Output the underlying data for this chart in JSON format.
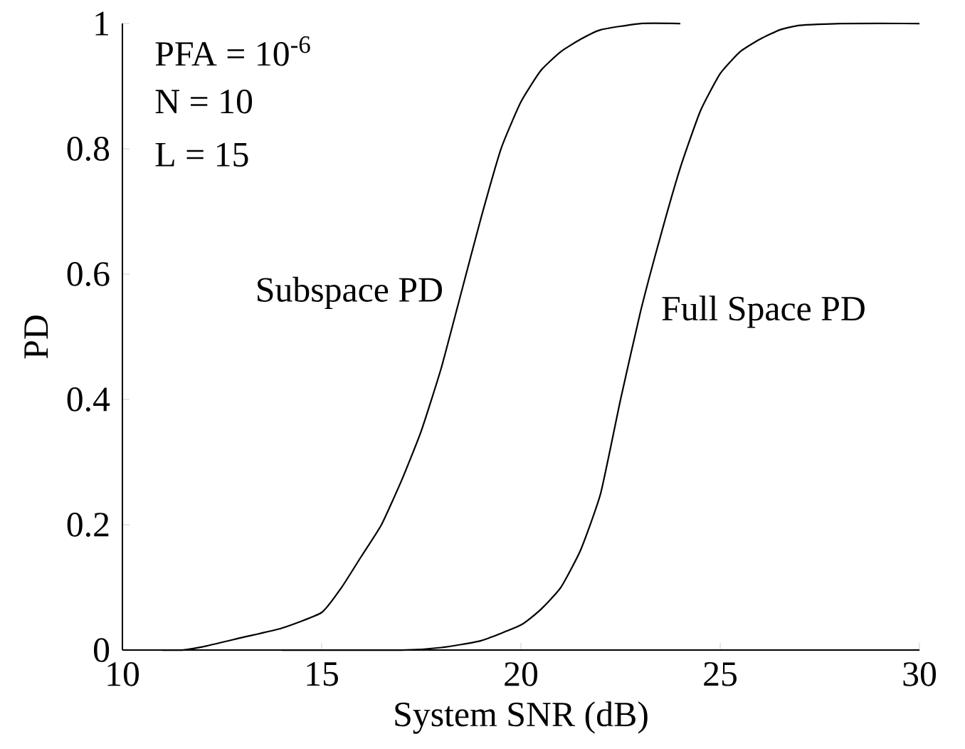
{
  "chart_data": {
    "type": "line",
    "xlabel": "System SNR (dB)",
    "ylabel": "PD",
    "xlim": [
      10,
      30
    ],
    "ylim": [
      0,
      1
    ],
    "xticks": [
      10,
      15,
      20,
      25,
      30
    ],
    "yticks": [
      0,
      0.2,
      0.4,
      0.6,
      0.8,
      1
    ],
    "annotations": [
      "PFA = 10$^{-6}$",
      "N = 10",
      "L = 15"
    ],
    "series": [
      {
        "name": "Subspace PD",
        "color": "#000000",
        "x": [
          11,
          11.5,
          12,
          13,
          14,
          15,
          15.5,
          16,
          16.5,
          17,
          17.5,
          18,
          18.5,
          19,
          19.5,
          20,
          20.5,
          21,
          21.5,
          22,
          23,
          24
        ],
        "values": [
          0,
          0,
          0.005,
          0.02,
          0.035,
          0.06,
          0.1,
          0.15,
          0.2,
          0.27,
          0.35,
          0.45,
          0.57,
          0.69,
          0.8,
          0.875,
          0.925,
          0.955,
          0.975,
          0.99,
          1,
          1
        ]
      },
      {
        "name": "Full Space PD",
        "color": "#000000",
        "x": [
          14,
          17,
          18,
          19,
          20,
          20.5,
          21,
          21.5,
          22,
          22.5,
          23,
          23.5,
          24,
          24.5,
          25,
          25.5,
          26,
          26.5,
          27,
          28,
          30
        ],
        "values": [
          0,
          0,
          0.004,
          0.015,
          0.04,
          0.065,
          0.1,
          0.16,
          0.25,
          0.4,
          0.54,
          0.66,
          0.77,
          0.86,
          0.92,
          0.955,
          0.975,
          0.99,
          0.997,
          1,
          1
        ]
      }
    ]
  }
}
